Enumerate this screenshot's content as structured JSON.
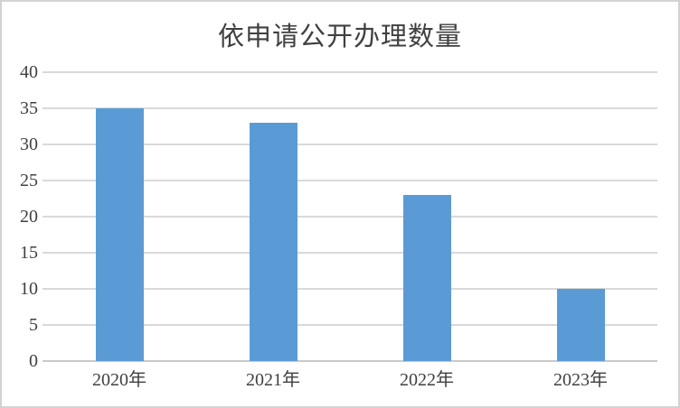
{
  "chart_data": {
    "type": "bar",
    "title": "依申请公开办理数量",
    "categories": [
      "2020年",
      "2021年",
      "2022年",
      "2023年"
    ],
    "values": [
      35,
      33,
      23,
      10
    ],
    "xlabel": "",
    "ylabel": "",
    "ylim": [
      0,
      40
    ],
    "yticks": [
      0,
      5,
      10,
      15,
      20,
      25,
      30,
      35,
      40
    ],
    "grid": true,
    "legend_position": "none",
    "bar_color": "#5B9BD5",
    "gridline_color": "#D9D9D9",
    "axis_line_color": "#C9C9C9",
    "label_color": "#404040",
    "border_color": "#D3D3D3",
    "background": "#FFFFFF"
  }
}
